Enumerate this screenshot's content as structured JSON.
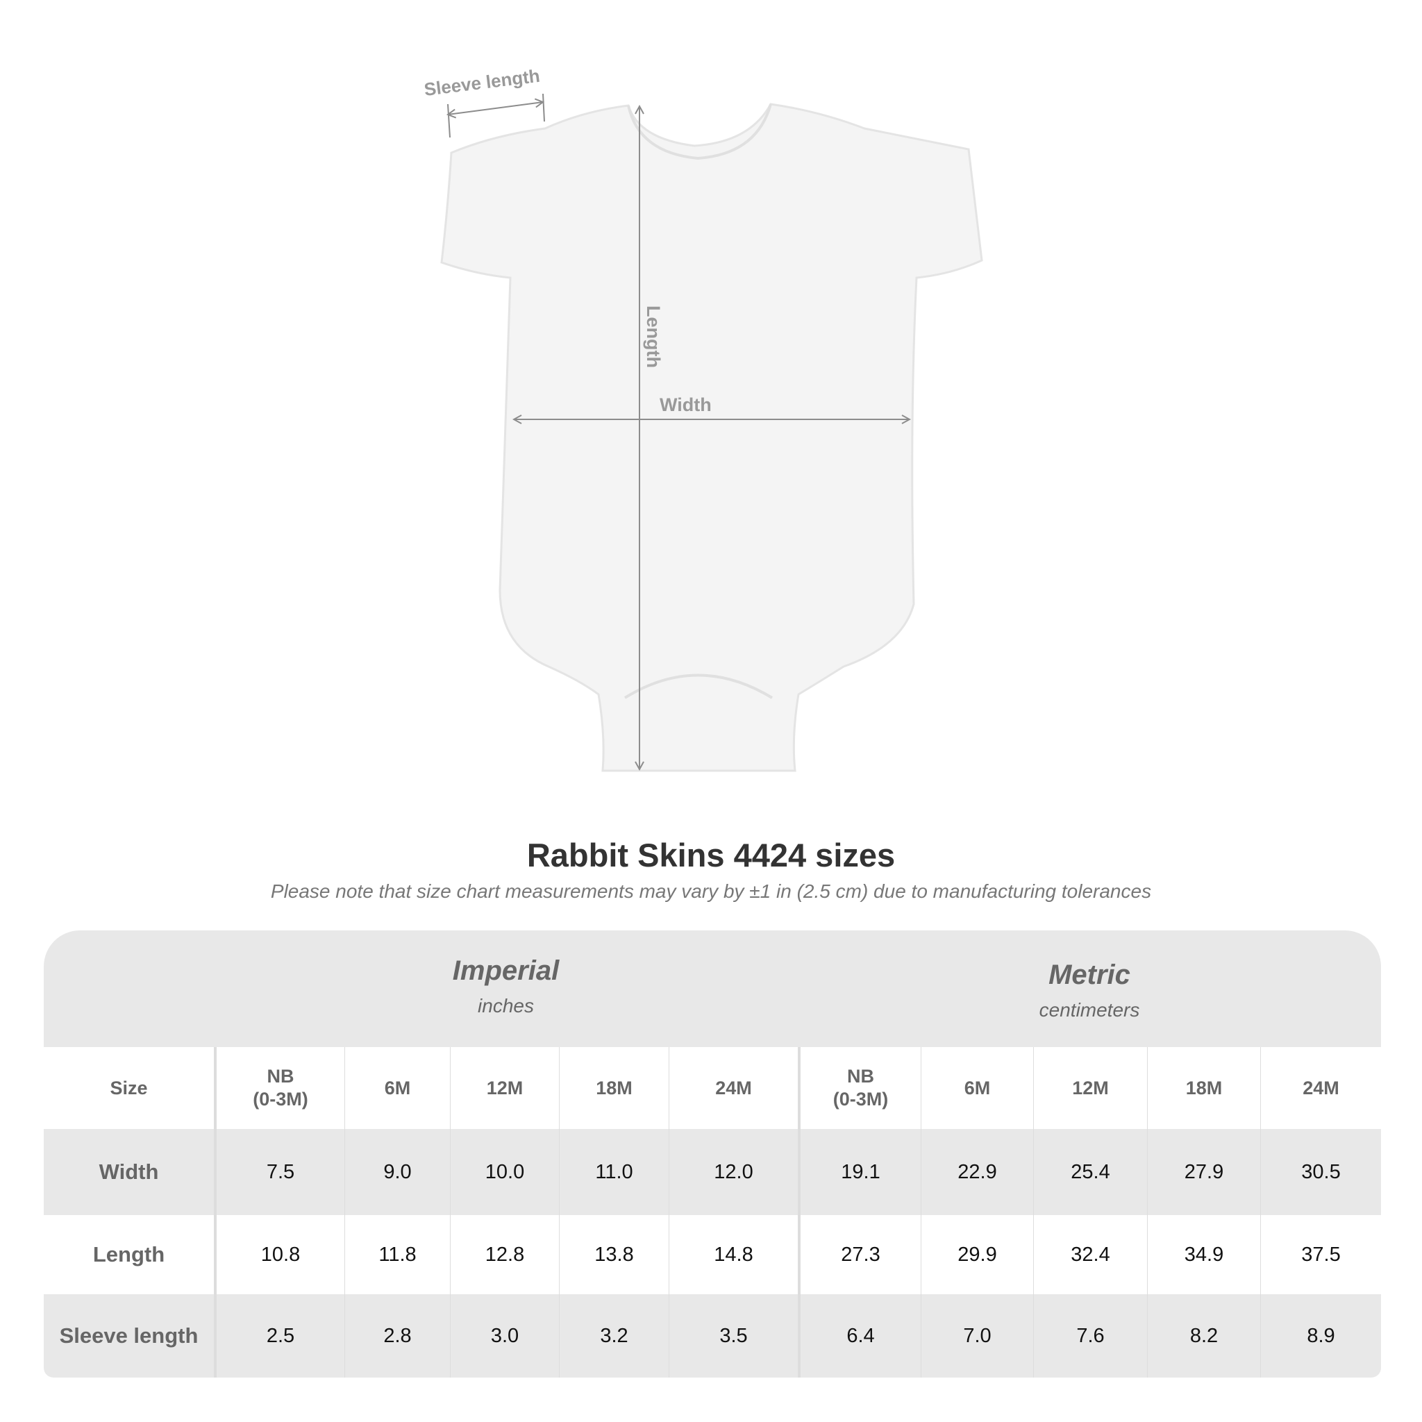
{
  "diagram": {
    "labels": {
      "sleeve": "Sleeve length",
      "length": "Length",
      "width": "Width"
    },
    "garment_color": "#f4f4f4",
    "arrow_color": "#8c8c8c"
  },
  "title": "Rabbit Skins 4424 sizes",
  "subtitle": "Please note that size chart measurements may vary by ±1 in (2.5 cm) due to manufacturing tolerances",
  "table": {
    "groups": [
      {
        "name": "Imperial",
        "unit": "inches"
      },
      {
        "name": "Metric",
        "unit": "centimeters"
      }
    ],
    "size_label": "Size",
    "sizes": [
      "NB\n(0-3M)",
      "6M",
      "12M",
      "18M",
      "24M"
    ],
    "rows": [
      {
        "label": "Width",
        "imperial": [
          "7.5",
          "9.0",
          "10.0",
          "11.0",
          "12.0"
        ],
        "metric": [
          "19.1",
          "22.9",
          "25.4",
          "27.9",
          "30.5"
        ]
      },
      {
        "label": "Length",
        "imperial": [
          "10.8",
          "11.8",
          "12.8",
          "13.8",
          "14.8"
        ],
        "metric": [
          "27.3",
          "29.9",
          "32.4",
          "34.9",
          "37.5"
        ]
      },
      {
        "label": "Sleeve length",
        "imperial": [
          "2.5",
          "2.8",
          "3.0",
          "3.2",
          "3.5"
        ],
        "metric": [
          "6.4",
          "7.0",
          "7.6",
          "8.2",
          "8.9"
        ]
      }
    ]
  }
}
